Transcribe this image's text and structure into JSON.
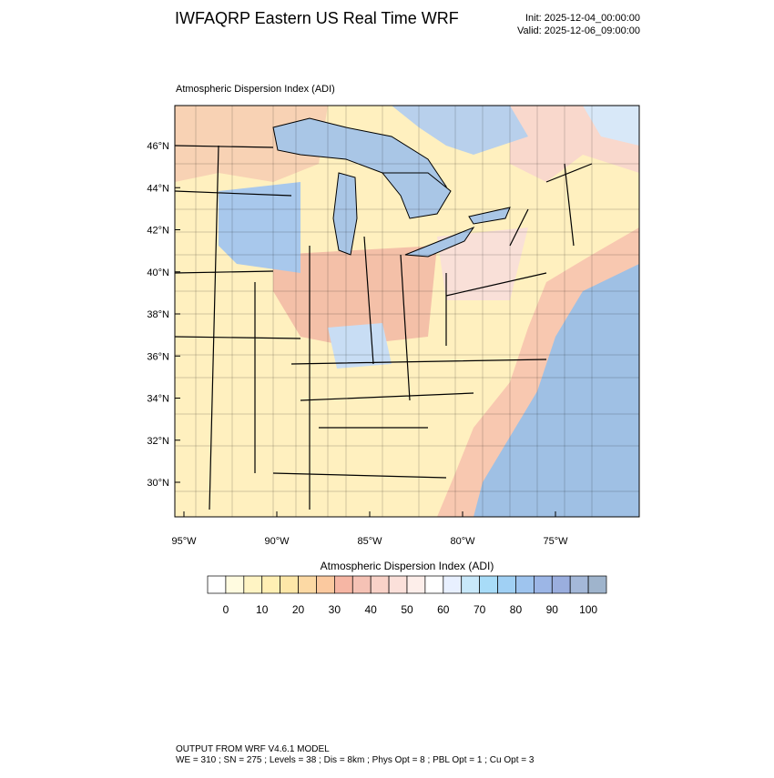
{
  "header": {
    "title": "IWFAQRP Eastern US Real Time WRF",
    "init": "Init: 2025-12-04_00:00:00",
    "valid": "Valid: 2025-12-06_09:00:00"
  },
  "plot": {
    "title": "Atmospheric Dispersion Index   (ADI)",
    "lat_labels": [
      "46°N",
      "44°N",
      "42°N",
      "40°N",
      "38°N",
      "36°N",
      "34°N",
      "32°N",
      "30°N"
    ],
    "lon_labels": [
      "95°W",
      "90°W",
      "85°W",
      "80°W",
      "75°W"
    ]
  },
  "colorbar": {
    "title": "Atmospheric Dispersion Index  (ADI)",
    "labels": [
      "0",
      "10",
      "20",
      "30",
      "40",
      "50",
      "60",
      "70",
      "80",
      "90",
      "100"
    ],
    "colors": [
      "#ffffff",
      "#fffbe0",
      "#fff4c4",
      "#ffefb4",
      "#fde7a8",
      "#fcd9a4",
      "#fbc99f",
      "#f6b6a4",
      "#f5c2b5",
      "#f9d2c8",
      "#fbe0da",
      "#fdeeea",
      "#ffffff",
      "#e8f0ff",
      "#c8e8fa",
      "#a8dcf8",
      "#a0d0f4",
      "#9ec4ee",
      "#9cb6e6",
      "#9aaede",
      "#a4b8d8",
      "#9fb4cc"
    ]
  },
  "footer": {
    "line1": "OUTPUT FROM WRF V4.6.1 MODEL",
    "line2": "WE = 310 ; SN = 275 ; Levels = 38 ; Dis = 8km ; Phys Opt = 8 ; PBL Opt = 1 ; Cu Opt = 3"
  }
}
